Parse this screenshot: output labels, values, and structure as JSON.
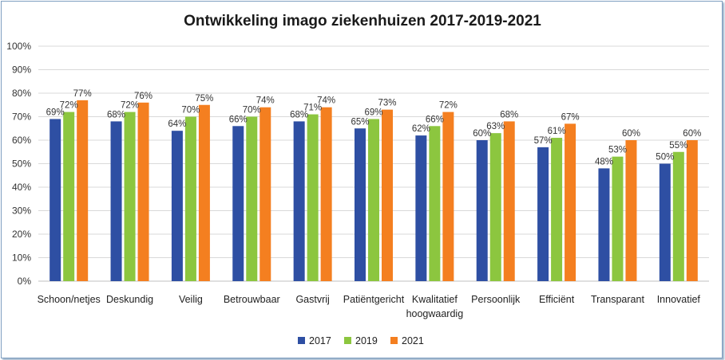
{
  "chart_data": {
    "type": "bar",
    "title": "Ontwikkeling  imago ziekenhuizen  2017-2019-2021",
    "xlabel": "",
    "ylabel": "",
    "ylim": [
      0,
      100
    ],
    "yticks": [
      "0%",
      "10%",
      "20%",
      "30%",
      "40%",
      "50%",
      "60%",
      "70%",
      "80%",
      "90%",
      "100%"
    ],
    "grid": true,
    "legend_position": "bottom",
    "categories": [
      [
        "Schoon/netjes"
      ],
      [
        "Deskundig"
      ],
      [
        "Veilig"
      ],
      [
        "Betrouwbaar"
      ],
      [
        "Gastvrij"
      ],
      [
        "Patiëntgericht"
      ],
      [
        "Kwalitatief",
        "hoogwaardig"
      ],
      [
        "Persoonlijk"
      ],
      [
        "Efficiënt"
      ],
      [
        "Transparant"
      ],
      [
        "Innovatief"
      ]
    ],
    "series": [
      {
        "name": "2017",
        "color": "#2e4fa3",
        "values": [
          69,
          68,
          64,
          66,
          68,
          65,
          62,
          60,
          57,
          48,
          50
        ]
      },
      {
        "name": "2019",
        "color": "#8cc63f",
        "values": [
          72,
          72,
          70,
          70,
          71,
          69,
          66,
          63,
          61,
          53,
          55
        ]
      },
      {
        "name": "2021",
        "color": "#f47f20",
        "values": [
          77,
          76,
          75,
          74,
          74,
          73,
          72,
          68,
          67,
          60,
          60
        ]
      }
    ]
  }
}
